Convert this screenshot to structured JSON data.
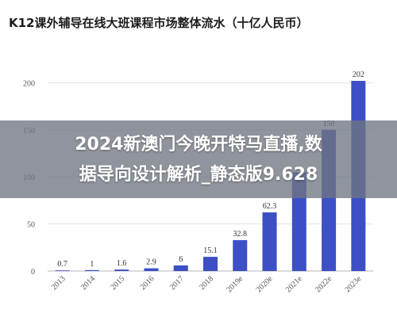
{
  "chart_data": {
    "type": "bar",
    "title": "K12课外辅导在线大班课程市场整体流水（十亿人民币）",
    "xlabel": "",
    "ylabel": "",
    "categories": [
      "2013",
      "2014",
      "2015",
      "2016",
      "2017",
      "2018",
      "2019e",
      "2020e",
      "2021e",
      "2022e",
      "2023e"
    ],
    "values": [
      0.7,
      1,
      1.6,
      2.9,
      6,
      15.1,
      32.8,
      62.3,
      105,
      150,
      202
    ],
    "value_labels": [
      "0.7",
      "1",
      "1.6",
      "2.9",
      "6",
      "15.1",
      "32.8",
      "62.3",
      "",
      "150",
      "202"
    ],
    "ylim": [
      0,
      250
    ],
    "yticks": [
      0,
      50,
      100,
      150,
      200
    ],
    "ytick_labels": [
      "0",
      "50",
      "100",
      "150",
      "200"
    ],
    "grid": true,
    "legend": "none",
    "bar_color": "#3c4fc4"
  },
  "banner": {
    "line1": "2024新澳门今晚开特马直播,数",
    "line2": "据导向设计解析_静态版9.628"
  }
}
